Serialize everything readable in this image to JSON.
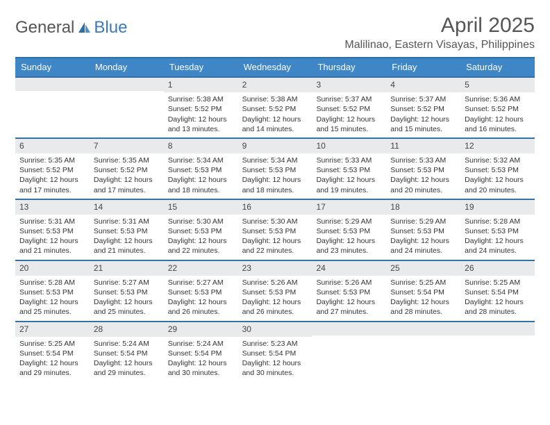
{
  "logo": {
    "text1": "General",
    "text2": "Blue",
    "icon_color": "#2e6fa8"
  },
  "title": "April 2025",
  "location": "Malilinao, Eastern Visayas, Philippines",
  "colors": {
    "header_bg": "#3f86c6",
    "header_text": "#ffffff",
    "border": "#3670a5",
    "daynum_bg": "#e9eaeb",
    "text": "#333333"
  },
  "day_names": [
    "Sunday",
    "Monday",
    "Tuesday",
    "Wednesday",
    "Thursday",
    "Friday",
    "Saturday"
  ],
  "weeks": [
    [
      {
        "blank": true
      },
      {
        "blank": true
      },
      {
        "num": "1",
        "sunrise": "Sunrise: 5:38 AM",
        "sunset": "Sunset: 5:52 PM",
        "daylight": "Daylight: 12 hours and 13 minutes."
      },
      {
        "num": "2",
        "sunrise": "Sunrise: 5:38 AM",
        "sunset": "Sunset: 5:52 PM",
        "daylight": "Daylight: 12 hours and 14 minutes."
      },
      {
        "num": "3",
        "sunrise": "Sunrise: 5:37 AM",
        "sunset": "Sunset: 5:52 PM",
        "daylight": "Daylight: 12 hours and 15 minutes."
      },
      {
        "num": "4",
        "sunrise": "Sunrise: 5:37 AM",
        "sunset": "Sunset: 5:52 PM",
        "daylight": "Daylight: 12 hours and 15 minutes."
      },
      {
        "num": "5",
        "sunrise": "Sunrise: 5:36 AM",
        "sunset": "Sunset: 5:52 PM",
        "daylight": "Daylight: 12 hours and 16 minutes."
      }
    ],
    [
      {
        "num": "6",
        "sunrise": "Sunrise: 5:35 AM",
        "sunset": "Sunset: 5:52 PM",
        "daylight": "Daylight: 12 hours and 17 minutes."
      },
      {
        "num": "7",
        "sunrise": "Sunrise: 5:35 AM",
        "sunset": "Sunset: 5:52 PM",
        "daylight": "Daylight: 12 hours and 17 minutes."
      },
      {
        "num": "8",
        "sunrise": "Sunrise: 5:34 AM",
        "sunset": "Sunset: 5:53 PM",
        "daylight": "Daylight: 12 hours and 18 minutes."
      },
      {
        "num": "9",
        "sunrise": "Sunrise: 5:34 AM",
        "sunset": "Sunset: 5:53 PM",
        "daylight": "Daylight: 12 hours and 18 minutes."
      },
      {
        "num": "10",
        "sunrise": "Sunrise: 5:33 AM",
        "sunset": "Sunset: 5:53 PM",
        "daylight": "Daylight: 12 hours and 19 minutes."
      },
      {
        "num": "11",
        "sunrise": "Sunrise: 5:33 AM",
        "sunset": "Sunset: 5:53 PM",
        "daylight": "Daylight: 12 hours and 20 minutes."
      },
      {
        "num": "12",
        "sunrise": "Sunrise: 5:32 AM",
        "sunset": "Sunset: 5:53 PM",
        "daylight": "Daylight: 12 hours and 20 minutes."
      }
    ],
    [
      {
        "num": "13",
        "sunrise": "Sunrise: 5:31 AM",
        "sunset": "Sunset: 5:53 PM",
        "daylight": "Daylight: 12 hours and 21 minutes."
      },
      {
        "num": "14",
        "sunrise": "Sunrise: 5:31 AM",
        "sunset": "Sunset: 5:53 PM",
        "daylight": "Daylight: 12 hours and 21 minutes."
      },
      {
        "num": "15",
        "sunrise": "Sunrise: 5:30 AM",
        "sunset": "Sunset: 5:53 PM",
        "daylight": "Daylight: 12 hours and 22 minutes."
      },
      {
        "num": "16",
        "sunrise": "Sunrise: 5:30 AM",
        "sunset": "Sunset: 5:53 PM",
        "daylight": "Daylight: 12 hours and 22 minutes."
      },
      {
        "num": "17",
        "sunrise": "Sunrise: 5:29 AM",
        "sunset": "Sunset: 5:53 PM",
        "daylight": "Daylight: 12 hours and 23 minutes."
      },
      {
        "num": "18",
        "sunrise": "Sunrise: 5:29 AM",
        "sunset": "Sunset: 5:53 PM",
        "daylight": "Daylight: 12 hours and 24 minutes."
      },
      {
        "num": "19",
        "sunrise": "Sunrise: 5:28 AM",
        "sunset": "Sunset: 5:53 PM",
        "daylight": "Daylight: 12 hours and 24 minutes."
      }
    ],
    [
      {
        "num": "20",
        "sunrise": "Sunrise: 5:28 AM",
        "sunset": "Sunset: 5:53 PM",
        "daylight": "Daylight: 12 hours and 25 minutes."
      },
      {
        "num": "21",
        "sunrise": "Sunrise: 5:27 AM",
        "sunset": "Sunset: 5:53 PM",
        "daylight": "Daylight: 12 hours and 25 minutes."
      },
      {
        "num": "22",
        "sunrise": "Sunrise: 5:27 AM",
        "sunset": "Sunset: 5:53 PM",
        "daylight": "Daylight: 12 hours and 26 minutes."
      },
      {
        "num": "23",
        "sunrise": "Sunrise: 5:26 AM",
        "sunset": "Sunset: 5:53 PM",
        "daylight": "Daylight: 12 hours and 26 minutes."
      },
      {
        "num": "24",
        "sunrise": "Sunrise: 5:26 AM",
        "sunset": "Sunset: 5:53 PM",
        "daylight": "Daylight: 12 hours and 27 minutes."
      },
      {
        "num": "25",
        "sunrise": "Sunrise: 5:25 AM",
        "sunset": "Sunset: 5:54 PM",
        "daylight": "Daylight: 12 hours and 28 minutes."
      },
      {
        "num": "26",
        "sunrise": "Sunrise: 5:25 AM",
        "sunset": "Sunset: 5:54 PM",
        "daylight": "Daylight: 12 hours and 28 minutes."
      }
    ],
    [
      {
        "num": "27",
        "sunrise": "Sunrise: 5:25 AM",
        "sunset": "Sunset: 5:54 PM",
        "daylight": "Daylight: 12 hours and 29 minutes."
      },
      {
        "num": "28",
        "sunrise": "Sunrise: 5:24 AM",
        "sunset": "Sunset: 5:54 PM",
        "daylight": "Daylight: 12 hours and 29 minutes."
      },
      {
        "num": "29",
        "sunrise": "Sunrise: 5:24 AM",
        "sunset": "Sunset: 5:54 PM",
        "daylight": "Daylight: 12 hours and 30 minutes."
      },
      {
        "num": "30",
        "sunrise": "Sunrise: 5:23 AM",
        "sunset": "Sunset: 5:54 PM",
        "daylight": "Daylight: 12 hours and 30 minutes."
      },
      {
        "blank": true
      },
      {
        "blank": true
      },
      {
        "blank": true
      }
    ]
  ]
}
